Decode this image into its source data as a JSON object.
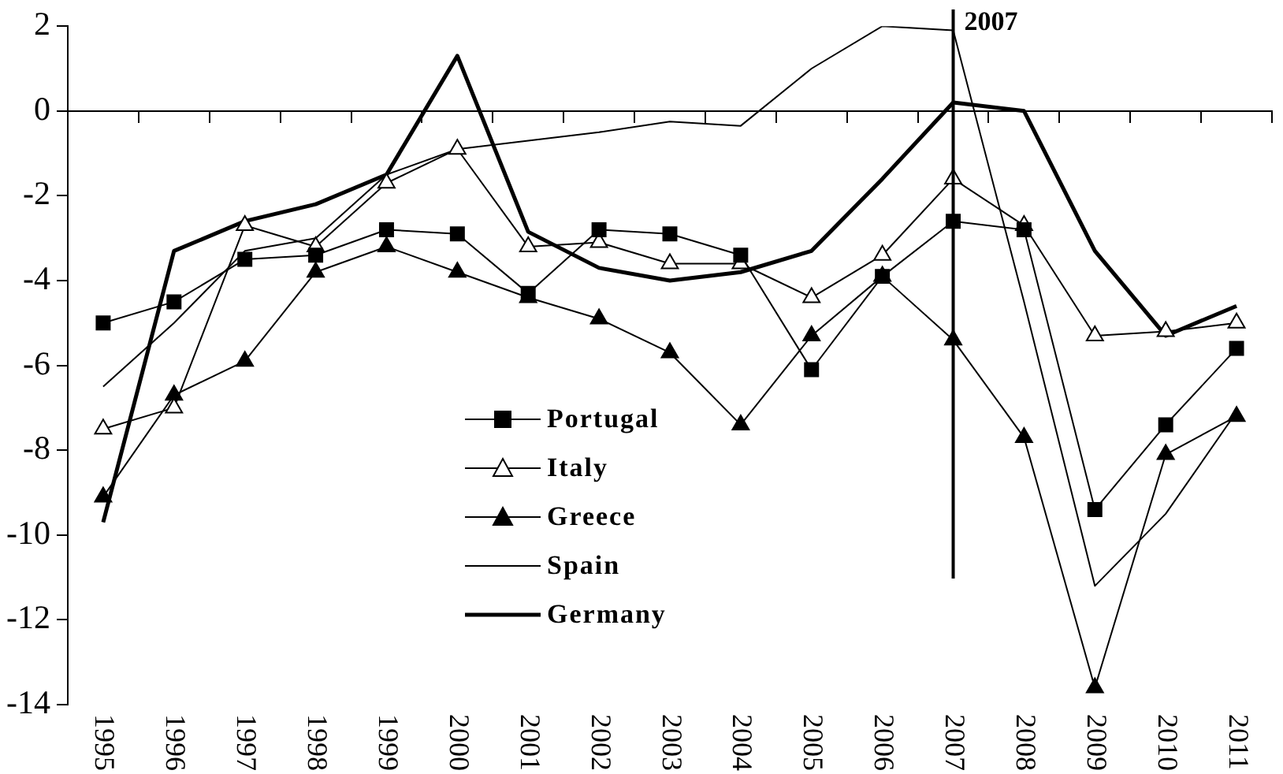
{
  "chart_data": {
    "type": "line",
    "categories": [
      "1995",
      "1996",
      "1997",
      "1998",
      "1999",
      "2000",
      "2001",
      "2002",
      "2003",
      "2004",
      "2005",
      "2006",
      "2007",
      "2008",
      "2009",
      "2010",
      "2011"
    ],
    "ylim": [
      -14,
      2
    ],
    "yticks": [
      2,
      0,
      -2,
      -4,
      -6,
      -8,
      -10,
      -12,
      -14
    ],
    "grid": false,
    "legend": "bottom",
    "ref_lines": [
      {
        "axis": "x",
        "value": "2007",
        "label": "2007",
        "color": "#000000"
      }
    ],
    "series": [
      {
        "name": "Portugal",
        "color": "#000000",
        "marker": "square",
        "values": [
          -5.0,
          -4.5,
          -3.5,
          -3.4,
          -2.8,
          -2.9,
          -4.3,
          -2.8,
          -2.9,
          -3.4,
          -6.1,
          -3.9,
          -2.6,
          -2.8,
          -9.4,
          -7.4,
          -5.6
        ]
      },
      {
        "name": "Italy",
        "color": "#000000",
        "marker": "triangle",
        "values": [
          -7.5,
          -7.0,
          -2.7,
          -3.2,
          -1.7,
          -0.9,
          -3.2,
          -3.1,
          -3.6,
          -3.6,
          -4.4,
          -3.4,
          -1.6,
          -2.7,
          -5.3,
          -5.2,
          -5.0
        ]
      },
      {
        "name": "Greece",
        "color": "#000000",
        "marker": "triangle",
        "values": [
          -9.1,
          -6.7,
          -5.9,
          -3.8,
          -3.2,
          -3.8,
          -4.4,
          -4.9,
          -5.7,
          -7.4,
          -5.3,
          -3.9,
          -5.4,
          -7.7,
          -13.6,
          -8.1,
          -7.2
        ]
      },
      {
        "name": "Spain",
        "color": "#000000",
        "marker": "none",
        "values": [
          -6.5,
          -5.0,
          -3.3,
          -3.0,
          -1.5,
          -0.9,
          -0.7,
          -0.5,
          -0.25,
          -0.35,
          1.0,
          2.0,
          1.9,
          -4.5,
          -11.2,
          -9.5,
          -7.1
        ]
      },
      {
        "name": "Germany",
        "color": "#000000",
        "marker": "none",
        "values": [
          -9.7,
          -3.3,
          -2.6,
          -2.2,
          -1.5,
          1.3,
          -2.85,
          -3.7,
          -4.0,
          -3.8,
          -3.3,
          -1.6,
          0.2,
          0.0,
          -3.3,
          -5.3,
          -4.6
        ]
      }
    ]
  }
}
